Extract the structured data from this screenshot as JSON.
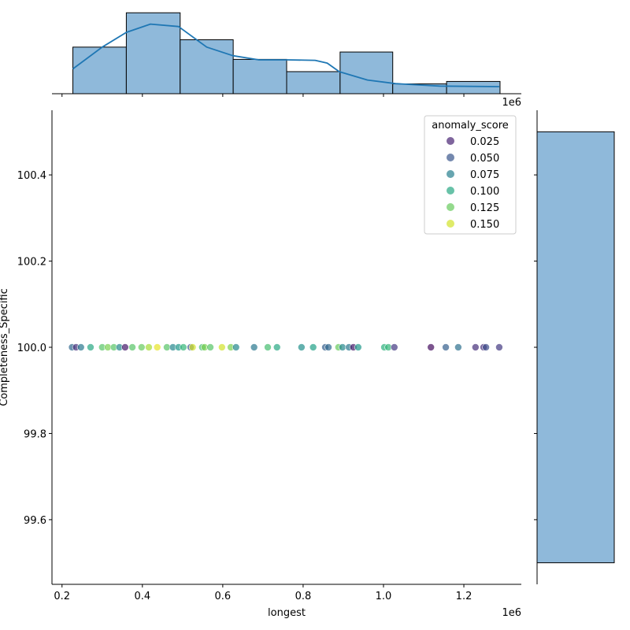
{
  "chart_data": {
    "type": "scatter",
    "xlabel": "longest",
    "ylabel": "Completeness_Specific",
    "x_offset_label": "1e6",
    "top_offset_label": "1e6",
    "xlim": [
      0.175,
      1.343
    ],
    "ylim": [
      99.45,
      100.55
    ],
    "xticks": [
      0.2,
      0.4,
      0.6,
      0.8,
      1.0,
      1.2
    ],
    "xtick_labels": [
      "0.2",
      "0.4",
      "0.6",
      "0.8",
      "1.0",
      "1.2"
    ],
    "yticks": [
      99.6,
      99.8,
      100.0,
      100.2,
      100.4
    ],
    "ytick_labels": [
      "99.6",
      "99.8",
      "100.0",
      "100.2",
      "100.4"
    ],
    "grid": false,
    "hue": {
      "name": "anomaly_score",
      "colormap": "viridis",
      "domain": [
        0.01,
        0.16
      ],
      "alpha": 0.7
    },
    "legend": {
      "title": "anomaly_score",
      "placement": "top-right",
      "entries": [
        {
          "label": "0.025",
          "value": 0.025
        },
        {
          "label": "0.050",
          "value": 0.05
        },
        {
          "label": "0.075",
          "value": 0.075
        },
        {
          "label": "0.100",
          "value": 0.1
        },
        {
          "label": "0.125",
          "value": 0.125
        },
        {
          "label": "0.150",
          "value": 0.15
        }
      ]
    },
    "points": [
      [
        0.225,
        100,
        0.06
      ],
      [
        0.235,
        100,
        0.03
      ],
      [
        0.247,
        100,
        0.07
      ],
      [
        0.271,
        100,
        0.1
      ],
      [
        0.3,
        100,
        0.12
      ],
      [
        0.314,
        100,
        0.13
      ],
      [
        0.329,
        100,
        0.12
      ],
      [
        0.343,
        100,
        0.08
      ],
      [
        0.357,
        100,
        0.02
      ],
      [
        0.375,
        100,
        0.12
      ],
      [
        0.398,
        100,
        0.125
      ],
      [
        0.416,
        100,
        0.14
      ],
      [
        0.437,
        100,
        0.155
      ],
      [
        0.461,
        100,
        0.12
      ],
      [
        0.476,
        100,
        0.08
      ],
      [
        0.49,
        100,
        0.09
      ],
      [
        0.502,
        100,
        0.11
      ],
      [
        0.52,
        100,
        0.05
      ],
      [
        0.525,
        100,
        0.15
      ],
      [
        0.549,
        100,
        0.115
      ],
      [
        0.555,
        100,
        0.13
      ],
      [
        0.569,
        100,
        0.12
      ],
      [
        0.598,
        100,
        0.15
      ],
      [
        0.62,
        100,
        0.13
      ],
      [
        0.633,
        100,
        0.08
      ],
      [
        0.678,
        100,
        0.07
      ],
      [
        0.712,
        100,
        0.115
      ],
      [
        0.735,
        100,
        0.1
      ],
      [
        0.796,
        100,
        0.085
      ],
      [
        0.825,
        100,
        0.095
      ],
      [
        0.855,
        100,
        0.055
      ],
      [
        0.863,
        100,
        0.06
      ],
      [
        0.888,
        100,
        0.125
      ],
      [
        0.898,
        100,
        0.08
      ],
      [
        0.914,
        100,
        0.07
      ],
      [
        0.925,
        100,
        0.02
      ],
      [
        0.937,
        100,
        0.09
      ],
      [
        1.002,
        100,
        0.105
      ],
      [
        1.012,
        100,
        0.11
      ],
      [
        1.027,
        100,
        0.035
      ],
      [
        1.118,
        100,
        0.015
      ],
      [
        1.155,
        100,
        0.055
      ],
      [
        1.186,
        100,
        0.065
      ],
      [
        1.229,
        100,
        0.03
      ],
      [
        1.249,
        100,
        0.03
      ],
      [
        1.255,
        100,
        0.045
      ],
      [
        1.288,
        100,
        0.035
      ]
    ],
    "top_histogram": {
      "bin_edges": [
        0.227,
        0.36,
        0.494,
        0.626,
        0.759,
        0.892,
        1.023,
        1.157,
        1.29
      ],
      "counts": [
        19,
        33,
        22,
        14,
        9,
        17,
        4,
        5
      ],
      "ylim": [
        0,
        35
      ],
      "color": "#8fb9da",
      "kde_color": "#1f77b4",
      "kde": [
        [
          0.227,
          10.1
        ],
        [
          0.3,
          19
        ],
        [
          0.36,
          25
        ],
        [
          0.42,
          28.4
        ],
        [
          0.49,
          27.4
        ],
        [
          0.56,
          19
        ],
        [
          0.625,
          15.5
        ],
        [
          0.69,
          13.8
        ],
        [
          0.76,
          13.8
        ],
        [
          0.83,
          13.6
        ],
        [
          0.86,
          12.5
        ],
        [
          0.89,
          9
        ],
        [
          0.96,
          5.6
        ],
        [
          1.03,
          4.1
        ],
        [
          1.14,
          3.1
        ],
        [
          1.288,
          2.9
        ]
      ]
    },
    "right_histogram": {
      "bin_edges": [
        99.5,
        100.5
      ],
      "counts": [
        123
      ],
      "xlim": [
        0,
        123
      ],
      "color": "#8fb9da"
    }
  }
}
